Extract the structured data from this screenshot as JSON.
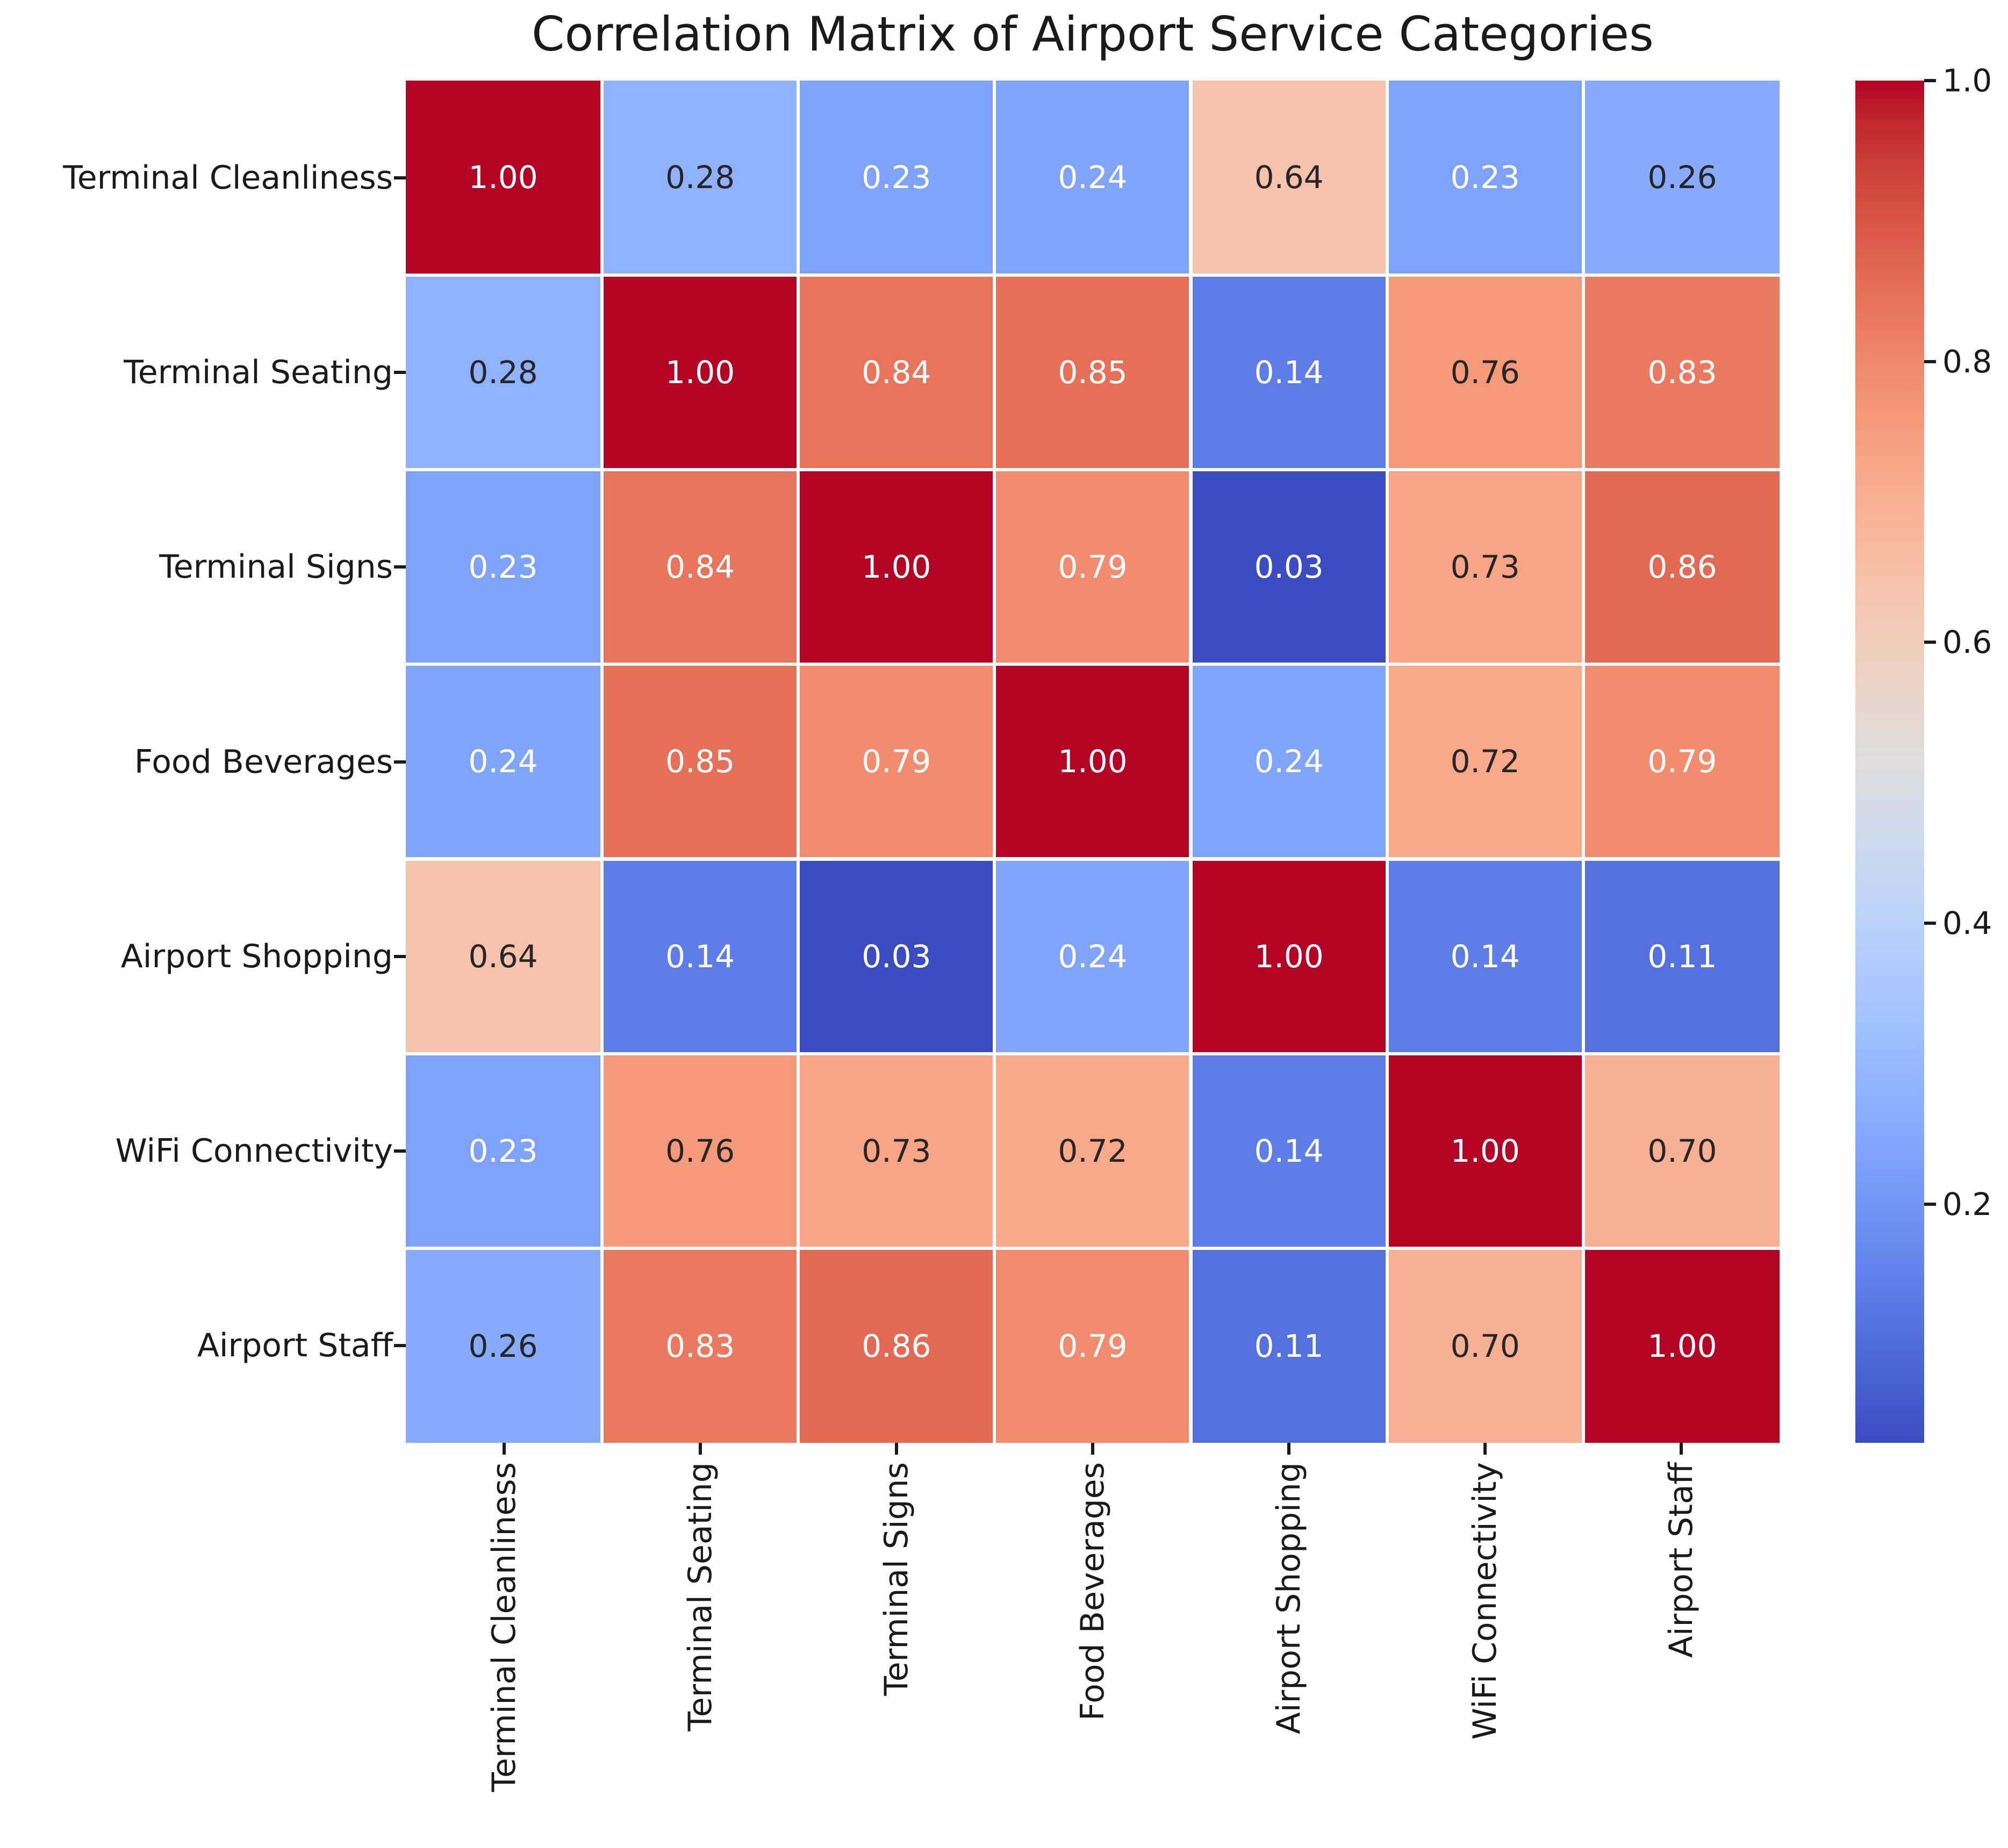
{
  "chart_data": {
    "type": "heatmap",
    "title": "Correlation Matrix of Airport Service Categories",
    "categories": [
      "Terminal Cleanliness",
      "Terminal Seating",
      "Terminal Signs",
      "Food Beverages",
      "Airport Shopping",
      "WiFi Connectivity",
      "Airport Staff"
    ],
    "matrix": [
      [
        1.0,
        0.28,
        0.23,
        0.24,
        0.64,
        0.23,
        0.26
      ],
      [
        0.28,
        1.0,
        0.84,
        0.85,
        0.14,
        0.76,
        0.83
      ],
      [
        0.23,
        0.84,
        1.0,
        0.79,
        0.03,
        0.73,
        0.86
      ],
      [
        0.24,
        0.85,
        0.79,
        1.0,
        0.24,
        0.72,
        0.79
      ],
      [
        0.64,
        0.14,
        0.03,
        0.24,
        1.0,
        0.14,
        0.11
      ],
      [
        0.23,
        0.76,
        0.73,
        0.72,
        0.14,
        1.0,
        0.7
      ],
      [
        0.26,
        0.83,
        0.86,
        0.79,
        0.11,
        0.7,
        1.0
      ]
    ],
    "cell_label_decimals": 2,
    "colormap": "coolwarm",
    "vmin": 0.03,
    "vmax": 1.0,
    "grid_lines": "white",
    "legend_position": "none",
    "colorbar": {
      "position": "right",
      "ticks": [
        {
          "value": 1.0,
          "label": "1.0"
        },
        {
          "value": 0.8,
          "label": "0.8"
        },
        {
          "value": 0.6,
          "label": "0.6"
        },
        {
          "value": 0.4,
          "label": "0.4"
        },
        {
          "value": 0.2,
          "label": "0.2"
        }
      ]
    },
    "colors": {
      "figure_background": "#ffffff",
      "annotation_dark": "#262626",
      "annotation_light": "#ffffff",
      "tick_mark": "#1a1a1a",
      "label_text": "#1a1a1a"
    },
    "coolwarm_rgb": [
      [
        59,
        76,
        192
      ],
      [
        68,
        90,
        204
      ],
      [
        77,
        104,
        215
      ],
      [
        87,
        117,
        225
      ],
      [
        98,
        130,
        234
      ],
      [
        108,
        142,
        241
      ],
      [
        119,
        154,
        247
      ],
      [
        130,
        165,
        251
      ],
      [
        141,
        176,
        254
      ],
      [
        152,
        185,
        255
      ],
      [
        163,
        194,
        255
      ],
      [
        174,
        201,
        253
      ],
      [
        184,
        208,
        249
      ],
      [
        194,
        213,
        244
      ],
      [
        204,
        217,
        238
      ],
      [
        213,
        219,
        230
      ],
      [
        221,
        221,
        221
      ],
      [
        229,
        216,
        209
      ],
      [
        236,
        211,
        197
      ],
      [
        241,
        204,
        185
      ],
      [
        245,
        196,
        173
      ],
      [
        247,
        187,
        160
      ],
      [
        247,
        177,
        148
      ],
      [
        247,
        166,
        135
      ],
      [
        244,
        154,
        123
      ],
      [
        241,
        141,
        111
      ],
      [
        236,
        127,
        99
      ],
      [
        229,
        112,
        88
      ],
      [
        222,
        96,
        77
      ],
      [
        213,
        80,
        66
      ],
      [
        203,
        62,
        56
      ],
      [
        192,
        40,
        47
      ],
      [
        180,
        4,
        38
      ]
    ]
  }
}
